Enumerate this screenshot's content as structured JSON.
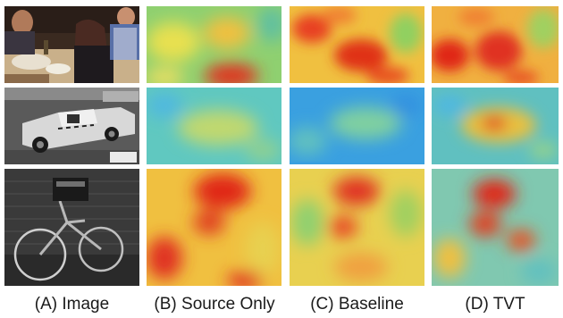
{
  "figure": {
    "columns": [
      {
        "id": "A",
        "label": "(A) Image"
      },
      {
        "id": "B",
        "label": "(B) Source Only"
      },
      {
        "id": "C",
        "label": "(C) Baseline"
      },
      {
        "id": "D",
        "label": "(D) TVT"
      }
    ],
    "rows": [
      {
        "id": "dinner",
        "photo_icon": "people-dining-photo"
      },
      {
        "id": "tug",
        "photo_icon": "airport-tug-vehicle-photo"
      },
      {
        "id": "bicycle",
        "photo_icon": "bicycle-against-wall-photo"
      }
    ],
    "colors": {
      "heat_low": "#3aa0e0",
      "heat_mid": "#e8e050",
      "heat_high": "#d81818"
    }
  }
}
